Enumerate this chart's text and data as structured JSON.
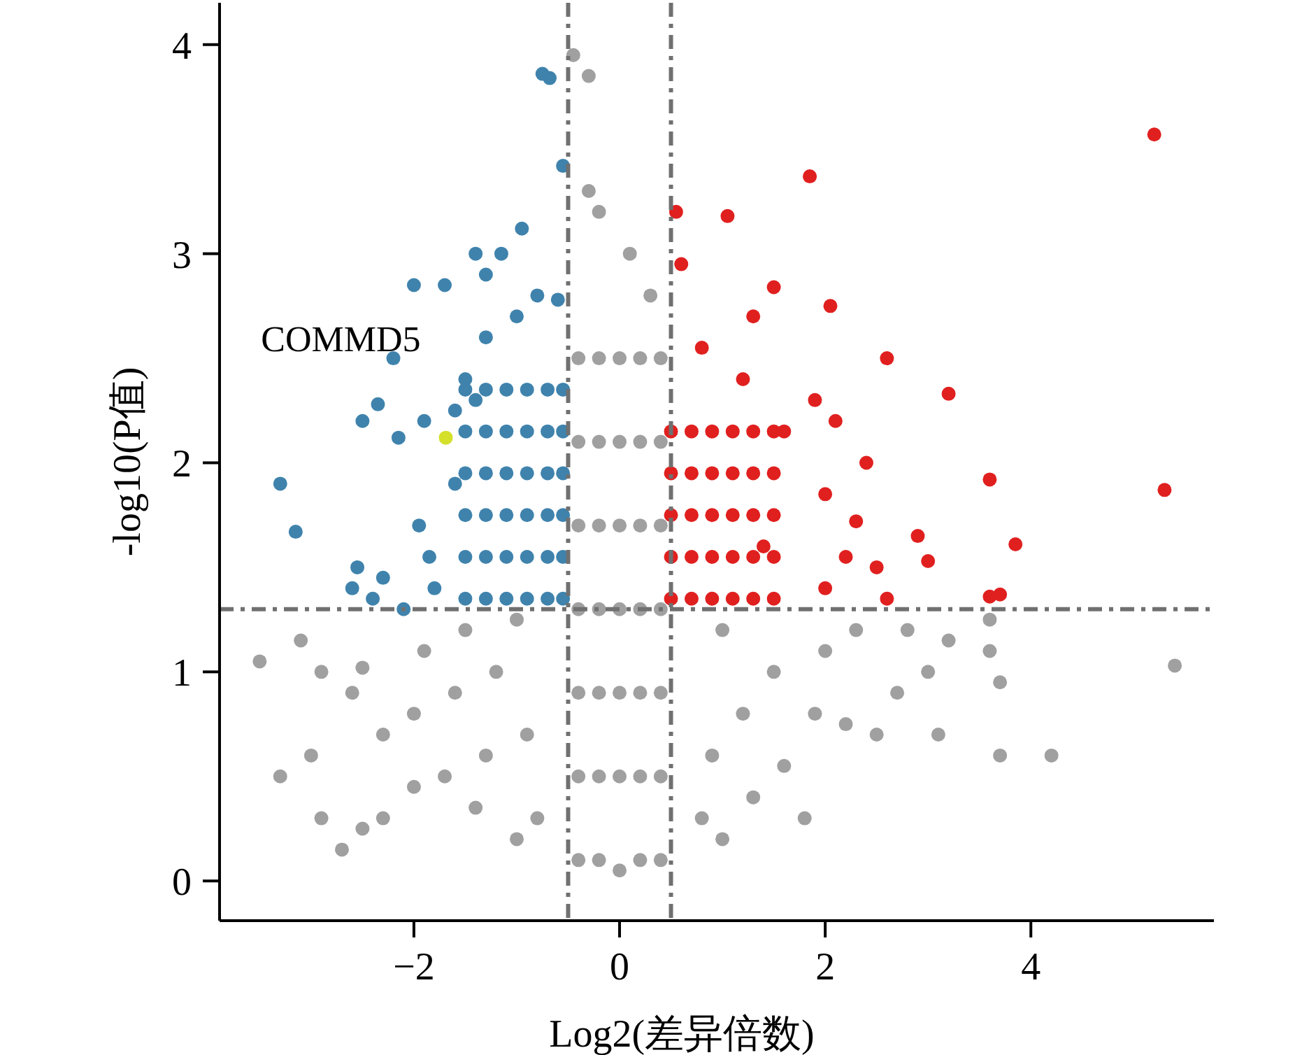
{
  "chart_data": {
    "type": "scatter",
    "xlabel": "Log2(差异倍数)",
    "ylabel": "-log10(P值)",
    "xlim": [
      -3.89,
      5.78
    ],
    "ylim": [
      -0.19,
      4.2
    ],
    "xticks": [
      {
        "value": -2,
        "label": "−2"
      },
      0,
      2,
      4
    ],
    "yticks": [
      0,
      1,
      2,
      3,
      4
    ],
    "grid": false,
    "marker": "circle",
    "ref_lines": [
      {
        "axis": "x",
        "value": -0.5,
        "color": "#707070",
        "line_style": "dashdot"
      },
      {
        "axis": "x",
        "value": 0.5,
        "color": "#707070",
        "line_style": "dashdot"
      },
      {
        "axis": "y",
        "value": 1.3,
        "color": "#707070",
        "line_style": "dashdot"
      }
    ],
    "annotations": [
      {
        "text": "COMMD5",
        "x": -1.69,
        "y": 2.12
      }
    ],
    "series": [
      {
        "color": "#a0a0a0",
        "x": [
          -0.4,
          -0.4,
          -0.4,
          -0.4,
          -0.4,
          -0.4,
          -0.4,
          -0.2,
          -0.2,
          -0.2,
          -0.2,
          -0.2,
          -0.2,
          -0.2,
          0,
          0,
          0,
          0,
          0,
          0,
          0,
          0.2,
          0.2,
          0.2,
          0.2,
          0.2,
          0.2,
          0.2,
          0.4,
          0.4,
          0.4,
          0.4,
          0.4,
          0.4,
          0.4,
          -0.45,
          -0.3,
          -0.3,
          -0.2,
          0.1,
          0.3,
          -3.5,
          -3.1,
          -2.9,
          -2.5,
          -3.3,
          -3.0,
          -2.5,
          -2.9,
          -2.3,
          -2.0,
          -1.7,
          -1.4,
          -1.0,
          -0.8,
          -2.3,
          -2.0,
          -1.6,
          -1.3,
          -1.2,
          -0.9,
          -1.9,
          -1.5,
          -1.0,
          -2.6,
          0.8,
          1.0,
          1.3,
          1.6,
          1.9,
          2.2,
          2.5,
          2.7,
          3.0,
          3.2,
          3.6,
          2.0,
          1.5,
          1.2,
          0.9,
          1.8,
          3.6,
          3.7,
          4.2,
          3.7,
          5.4,
          2.8,
          2.3,
          1.0,
          -2.7,
          3.1
        ],
        "values": [
          0.1,
          0.5,
          0.9,
          1.3,
          1.7,
          2.1,
          2.5,
          0.1,
          0.5,
          0.9,
          1.3,
          1.7,
          2.1,
          2.5,
          0.05,
          0.5,
          0.9,
          1.3,
          1.7,
          2.1,
          2.5,
          0.1,
          0.5,
          0.9,
          1.3,
          1.7,
          2.1,
          2.5,
          0.1,
          0.5,
          0.9,
          1.3,
          1.7,
          2.1,
          2.5,
          3.95,
          3.85,
          3.3,
          3.2,
          3.0,
          2.8,
          1.05,
          1.15,
          1.0,
          1.02,
          0.5,
          0.6,
          0.25,
          0.3,
          0.3,
          0.45,
          0.5,
          0.35,
          0.2,
          0.3,
          0.7,
          0.8,
          0.9,
          0.6,
          1.0,
          0.7,
          1.1,
          1.2,
          1.25,
          0.9,
          0.3,
          0.2,
          0.4,
          0.55,
          0.8,
          0.75,
          0.7,
          0.9,
          1.0,
          1.15,
          1.25,
          1.1,
          1.0,
          0.8,
          0.6,
          0.3,
          1.1,
          0.95,
          0.6,
          0.6,
          1.03,
          1.2,
          1.2,
          1.2,
          0.15,
          0.7
        ]
      },
      {
        "color": "#3f83ad",
        "x": [
          -3.3,
          -3.15,
          -2.0,
          -1.7,
          -1.4,
          -1.3,
          -1.15,
          -0.95,
          -0.75,
          -0.68,
          -0.55,
          -0.6,
          -2.2,
          -2.35,
          -2.15,
          -1.9,
          -2.4,
          -2.6,
          -2.1,
          -1.85,
          -1.95,
          -1.6,
          -1.5,
          -1.3,
          -1.0,
          -0.8,
          -1.6,
          -2.5,
          -1.4,
          -2.55,
          -2.3,
          -1.8,
          -1.5,
          -1.5,
          -1.5,
          -1.5,
          -1.5,
          -1.5,
          -1.3,
          -1.3,
          -1.3,
          -1.3,
          -1.3,
          -1.3,
          -1.1,
          -1.1,
          -1.1,
          -1.1,
          -1.1,
          -1.1,
          -0.9,
          -0.9,
          -0.9,
          -0.9,
          -0.9,
          -0.9,
          -0.7,
          -0.7,
          -0.7,
          -0.7,
          -0.7,
          -0.7,
          -0.55,
          -0.55,
          -0.55,
          -0.55,
          -0.55,
          -0.55
        ],
        "values": [
          1.9,
          1.67,
          2.85,
          2.85,
          3.0,
          2.9,
          3.0,
          3.12,
          3.86,
          3.84,
          3.42,
          2.78,
          2.5,
          2.28,
          2.12,
          2.2,
          1.35,
          1.4,
          1.3,
          1.55,
          1.7,
          1.9,
          2.4,
          2.6,
          2.7,
          2.8,
          2.25,
          2.2,
          2.3,
          1.5,
          1.45,
          1.4,
          1.35,
          1.55,
          1.75,
          1.95,
          2.15,
          2.35,
          1.35,
          1.55,
          1.75,
          1.95,
          2.15,
          2.35,
          1.35,
          1.55,
          1.75,
          1.95,
          2.15,
          2.35,
          1.35,
          1.55,
          1.75,
          1.95,
          2.15,
          2.35,
          1.35,
          1.55,
          1.75,
          1.95,
          2.15,
          2.35,
          1.35,
          1.55,
          1.75,
          1.95,
          2.15,
          2.35
        ]
      },
      {
        "color": "#e0201f",
        "x": [
          5.2,
          1.85,
          0.55,
          1.05,
          0.6,
          1.5,
          2.05,
          1.3,
          2.6,
          3.2,
          5.3,
          3.6,
          3.85,
          3.7,
          3.6,
          2.9,
          2.5,
          3.0,
          2.3,
          2.0,
          1.9,
          1.6,
          2.1,
          2.4,
          1.2,
          0.8,
          2.0,
          2.6,
          1.4,
          2.2,
          0.5,
          0.5,
          0.5,
          0.5,
          0.5,
          0.7,
          0.7,
          0.7,
          0.7,
          0.7,
          0.9,
          0.9,
          0.9,
          0.9,
          0.9,
          1.1,
          1.1,
          1.1,
          1.1,
          1.1,
          1.3,
          1.3,
          1.3,
          1.3,
          1.3,
          1.5,
          1.5,
          1.5,
          1.5,
          1.5
        ],
        "values": [
          3.57,
          3.37,
          3.2,
          3.18,
          2.95,
          2.84,
          2.75,
          2.7,
          2.5,
          2.33,
          1.87,
          1.92,
          1.61,
          1.37,
          1.36,
          1.65,
          1.5,
          1.53,
          1.72,
          1.85,
          2.3,
          2.15,
          2.2,
          2.0,
          2.4,
          2.55,
          1.4,
          1.35,
          1.6,
          1.55,
          1.35,
          1.55,
          1.75,
          1.95,
          2.15,
          1.35,
          1.55,
          1.75,
          1.95,
          2.15,
          1.35,
          1.55,
          1.75,
          1.95,
          2.15,
          1.35,
          1.55,
          1.75,
          1.95,
          2.15,
          1.35,
          1.55,
          1.75,
          1.95,
          2.15,
          1.35,
          1.55,
          1.75,
          1.95,
          2.15
        ]
      },
      {
        "color": "#d4e02a",
        "x": [
          -1.69
        ],
        "values": [
          2.12
        ]
      }
    ]
  }
}
